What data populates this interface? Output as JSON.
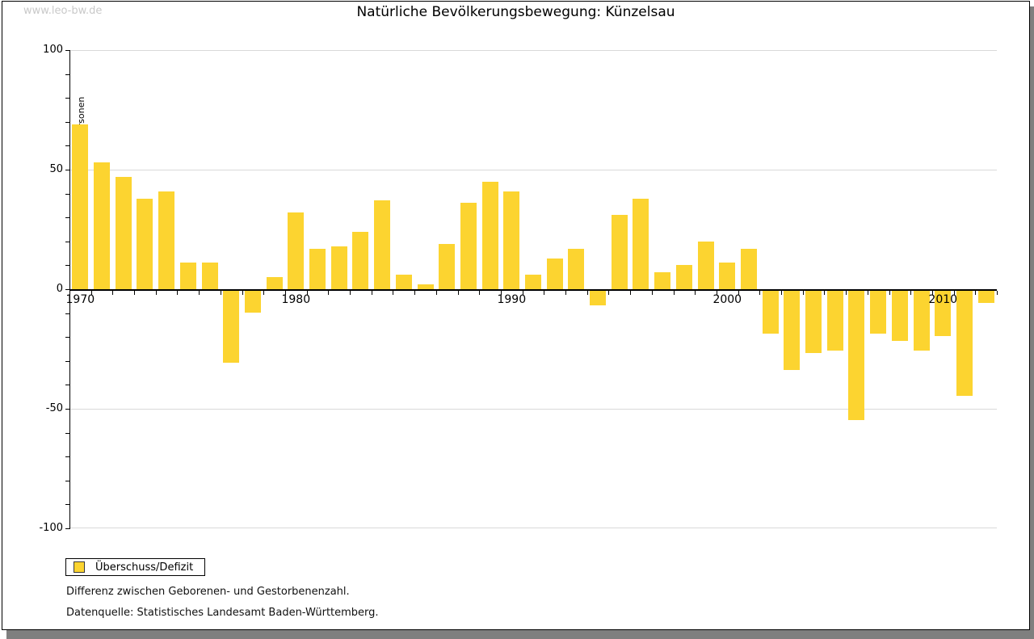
{
  "watermark": "www.leo-bw.de",
  "title": "Natürliche Bevölkerungsbewegung: Künzelsau",
  "chart_data": {
    "type": "bar",
    "title": "Natürliche Bevölkerungsbewegung: Künzelsau",
    "xlabel": "",
    "ylabel": "Personen",
    "series_name": "Überschuss/Defizit",
    "categories": [
      1970,
      1971,
      1972,
      1973,
      1974,
      1975,
      1976,
      1977,
      1978,
      1979,
      1980,
      1981,
      1982,
      1983,
      1984,
      1985,
      1986,
      1987,
      1988,
      1989,
      1990,
      1991,
      1992,
      1993,
      1994,
      1995,
      1996,
      1997,
      1998,
      1999,
      2000,
      2001,
      2002,
      2003,
      2004,
      2005,
      2006,
      2007,
      2008,
      2009,
      2010,
      2011,
      2012
    ],
    "values": [
      69,
      53,
      47,
      38,
      41,
      11,
      11,
      -30,
      -9,
      5,
      32,
      17,
      18,
      24,
      37,
      6,
      2,
      19,
      36,
      45,
      41,
      6,
      13,
      17,
      -6,
      31,
      38,
      7,
      10,
      20,
      11,
      17,
      -18,
      -33,
      -26,
      -25,
      -54,
      -18,
      -21,
      -25,
      -19,
      -44,
      -5
    ],
    "ylim": [
      -100,
      100
    ],
    "yticks_major": [
      100,
      50,
      0,
      -50,
      -100
    ],
    "ytick_labels": [
      "100",
      "50",
      "0",
      "-50",
      "-100"
    ],
    "yticks_minor_step": 10,
    "xtick_labels": [
      "1970",
      "1980",
      "1990",
      "2000",
      "2010"
    ],
    "grid": "horizontal major gridlines, light gray; solid black zero axis",
    "legend_position": "bottom-left below plot",
    "bar_color": "#fcd430",
    "gridline_color": "#d9d9d9",
    "axis_color": "#000000"
  },
  "legend": {
    "label": "Überschuss/Defizit",
    "swatch_color": "#fcd430"
  },
  "footnotes": [
    "Differenz zwischen Geborenen- und Gestorbenenzahl.",
    "Datenquelle: Statistisches Landesamt Baden-Württemberg."
  ]
}
